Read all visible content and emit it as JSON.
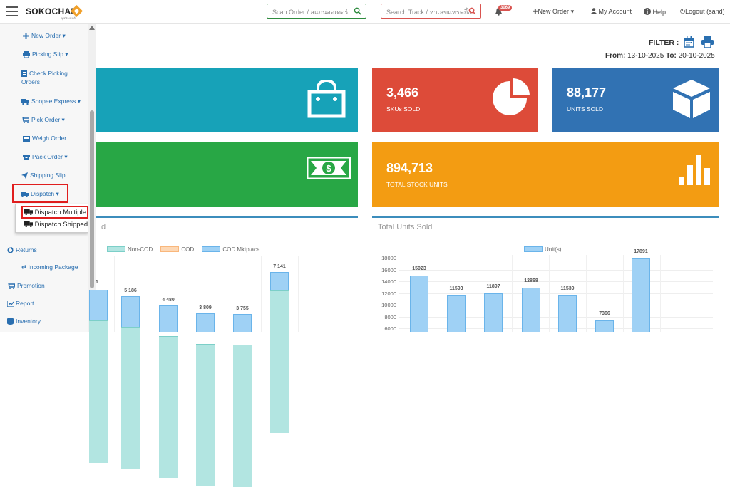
{
  "header": {
    "brand": "SOKOCHAN",
    "brand_sub": "ฟูลฟิลเมนต์",
    "scan_placeholder": "Scan Order / สแกนออเดอร์",
    "track_placeholder": "Search Track / หาเลขแทรคกิ้ง",
    "notification_count": "3069",
    "new_order": "New Order",
    "my_account": "My Account",
    "help": "Help",
    "logout": "Logout (sand)"
  },
  "sidebar": {
    "items": [
      {
        "label": "New Order",
        "icon": "plus-icon"
      },
      {
        "label": "Picking Slip",
        "icon": "printer-icon"
      },
      {
        "label": "Check Picking Orders",
        "icon": "checklist-icon"
      },
      {
        "label": "Shopee Express",
        "icon": "truck-icon"
      },
      {
        "label": "Pick Order",
        "icon": "cart-icon"
      },
      {
        "label": "Weigh Order",
        "icon": "scale-icon"
      },
      {
        "label": "Pack Order",
        "icon": "box-icon"
      },
      {
        "label": "Shipping Slip",
        "icon": "send-icon"
      },
      {
        "label": "Dispatch",
        "icon": "truck-icon"
      },
      {
        "label": "Returns",
        "icon": "refresh-icon"
      },
      {
        "label": "Incoming Package",
        "icon": "exchange-icon"
      },
      {
        "label": "Promotion",
        "icon": "cart-icon"
      },
      {
        "label": "Report",
        "icon": "chart-icon"
      },
      {
        "label": "Inventory",
        "icon": "database-icon"
      }
    ],
    "dispatch_menu": [
      "Dispatch Multiple",
      "Dispatch Shipped"
    ]
  },
  "filter": {
    "label": "FILTER :",
    "from_label": "From:",
    "from": "13-10-2025",
    "to_label": "To:",
    "to": "20-10-2025"
  },
  "cards": {
    "skus_value": "3,466",
    "skus_label": "SKUs SOLD",
    "units_value": "88,177",
    "units_label": "UNITS SOLD",
    "stock_value": "894,713",
    "stock_label": "TOTAL STOCK UNITS",
    "colors": {
      "teal": "#17a2b8",
      "red": "#dd4b39",
      "blue": "#3172b3",
      "green": "#28a745",
      "orange": "#f39c12"
    }
  },
  "chart_data": [
    {
      "type": "bar",
      "title": "d",
      "series": [
        {
          "name": "Non-COD",
          "color": "#b2e5e1"
        },
        {
          "name": "COD",
          "color": "#fdd8b5"
        },
        {
          "name": "COD Mktplace",
          "color": "#9fd1f5"
        }
      ],
      "categories": [
        "",
        "",
        "",
        "",
        "",
        ""
      ],
      "totals": [
        null,
        5186,
        4480,
        3809,
        3755,
        7141
      ],
      "totals_labels": [
        "",
        "5 186",
        "4 480",
        "3 809",
        "3 755",
        "7 141"
      ]
    },
    {
      "type": "bar",
      "title": "Total Units Sold",
      "series": [
        {
          "name": "Unit(s)",
          "values": [
            15023,
            11593,
            11897,
            12868,
            11539,
            7366,
            17891
          ],
          "color": "#9fd1f5"
        }
      ],
      "y_ticks": [
        "18000",
        "16000",
        "14000",
        "12000",
        "10000",
        "8000",
        "6000"
      ],
      "ylim": [
        6000,
        18000
      ]
    }
  ]
}
